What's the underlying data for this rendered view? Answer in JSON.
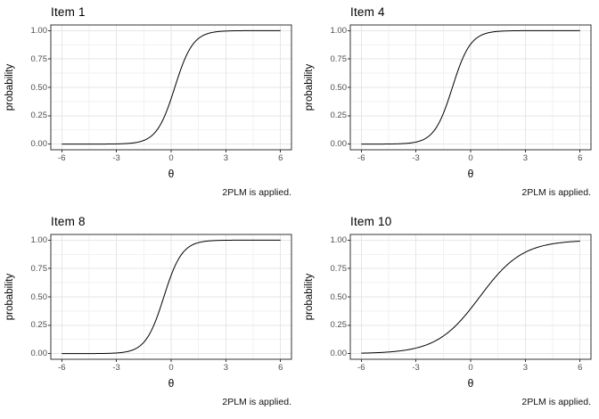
{
  "colors": {
    "background": "#FFFFFF",
    "curve": "#000000",
    "panel_border": "#333333",
    "panel_fill": "#FFFFFF",
    "grid_major": "#E6E6E6",
    "grid_minor": "#F2F2F2",
    "tick_mark": "#333333",
    "tick_label": "#4D4D4D",
    "text": "#000000"
  },
  "axes": {
    "x_label": "θ",
    "y_label": "probability",
    "x_range": [
      -6.6,
      6.6
    ],
    "y_range": [
      -0.05,
      1.05
    ],
    "x_ticks": [
      {
        "value": -6,
        "label": "-6"
      },
      {
        "value": -3,
        "label": "-3"
      },
      {
        "value": 0,
        "label": "0"
      },
      {
        "value": 3,
        "label": "3"
      },
      {
        "value": 6,
        "label": "6"
      }
    ],
    "y_ticks": [
      {
        "value": 0.0,
        "label": "0.00"
      },
      {
        "value": 0.25,
        "label": "0.25"
      },
      {
        "value": 0.5,
        "label": "0.50"
      },
      {
        "value": 0.75,
        "label": "0.75"
      },
      {
        "value": 1.0,
        "label": "1.00"
      }
    ],
    "x_minor": [
      -4.5,
      -1.5,
      1.5,
      4.5
    ],
    "y_minor": [
      0.125,
      0.375,
      0.625,
      0.875
    ],
    "grid": "on"
  },
  "caption": "2PLM is applied.",
  "chart_data": [
    {
      "type": "line",
      "title": "Item 1",
      "model": "2PL logistic",
      "params": {
        "slope_a": 2.0,
        "difficulty_b": 0.2
      },
      "xlabel": "θ",
      "ylabel": "probability",
      "xlim": [
        -6,
        6
      ],
      "ylim": [
        0,
        1
      ],
      "points": [
        [
          -6,
          0.0
        ],
        [
          -5,
          0.0
        ],
        [
          -4,
          0.0
        ],
        [
          -3,
          0.002
        ],
        [
          -2,
          0.012
        ],
        [
          -1,
          0.083
        ],
        [
          0,
          0.401
        ],
        [
          1,
          0.832
        ],
        [
          2,
          0.973
        ],
        [
          3,
          0.996
        ],
        [
          4,
          0.999
        ],
        [
          5,
          1.0
        ],
        [
          6,
          1.0
        ]
      ]
    },
    {
      "type": "line",
      "title": "Item 4",
      "model": "2PL logistic",
      "params": {
        "slope_a": 2.0,
        "difficulty_b": -1.0
      },
      "xlabel": "θ",
      "ylabel": "probability",
      "xlim": [
        -6,
        6
      ],
      "ylim": [
        0,
        1
      ],
      "points": [
        [
          -6,
          0.0
        ],
        [
          -5,
          0.0
        ],
        [
          -4,
          0.002
        ],
        [
          -3,
          0.018
        ],
        [
          -2,
          0.119
        ],
        [
          -1,
          0.5
        ],
        [
          0,
          0.881
        ],
        [
          1,
          0.982
        ],
        [
          2,
          0.998
        ],
        [
          3,
          1.0
        ],
        [
          4,
          1.0
        ],
        [
          5,
          1.0
        ],
        [
          6,
          1.0
        ]
      ]
    },
    {
      "type": "line",
      "title": "Item 8",
      "model": "2PL logistic",
      "params": {
        "slope_a": 2.0,
        "difficulty_b": -0.4
      },
      "xlabel": "θ",
      "ylabel": "probability",
      "xlim": [
        -6,
        6
      ],
      "ylim": [
        0,
        1
      ],
      "points": [
        [
          -6,
          0.0
        ],
        [
          -5,
          0.0
        ],
        [
          -4,
          0.001
        ],
        [
          -3,
          0.005
        ],
        [
          -2,
          0.039
        ],
        [
          -1,
          0.232
        ],
        [
          0,
          0.69
        ],
        [
          1,
          0.943
        ],
        [
          2,
          0.992
        ],
        [
          3,
          0.999
        ],
        [
          4,
          1.0
        ],
        [
          5,
          1.0
        ],
        [
          6,
          1.0
        ]
      ]
    },
    {
      "type": "line",
      "title": "Item 10",
      "model": "2PL logistic",
      "params": {
        "slope_a": 0.85,
        "difficulty_b": 0.5
      },
      "xlabel": "θ",
      "ylabel": "probability",
      "xlim": [
        -6,
        6
      ],
      "ylim": [
        0,
        1
      ],
      "points": [
        [
          -6,
          0.004
        ],
        [
          -5,
          0.009
        ],
        [
          -4,
          0.021
        ],
        [
          -3,
          0.049
        ],
        [
          -2,
          0.107
        ],
        [
          -1,
          0.218
        ],
        [
          0,
          0.395
        ],
        [
          1,
          0.605
        ],
        [
          2,
          0.782
        ],
        [
          3,
          0.893
        ],
        [
          4,
          0.951
        ],
        [
          5,
          0.978
        ],
        [
          6,
          0.99
        ]
      ]
    }
  ]
}
